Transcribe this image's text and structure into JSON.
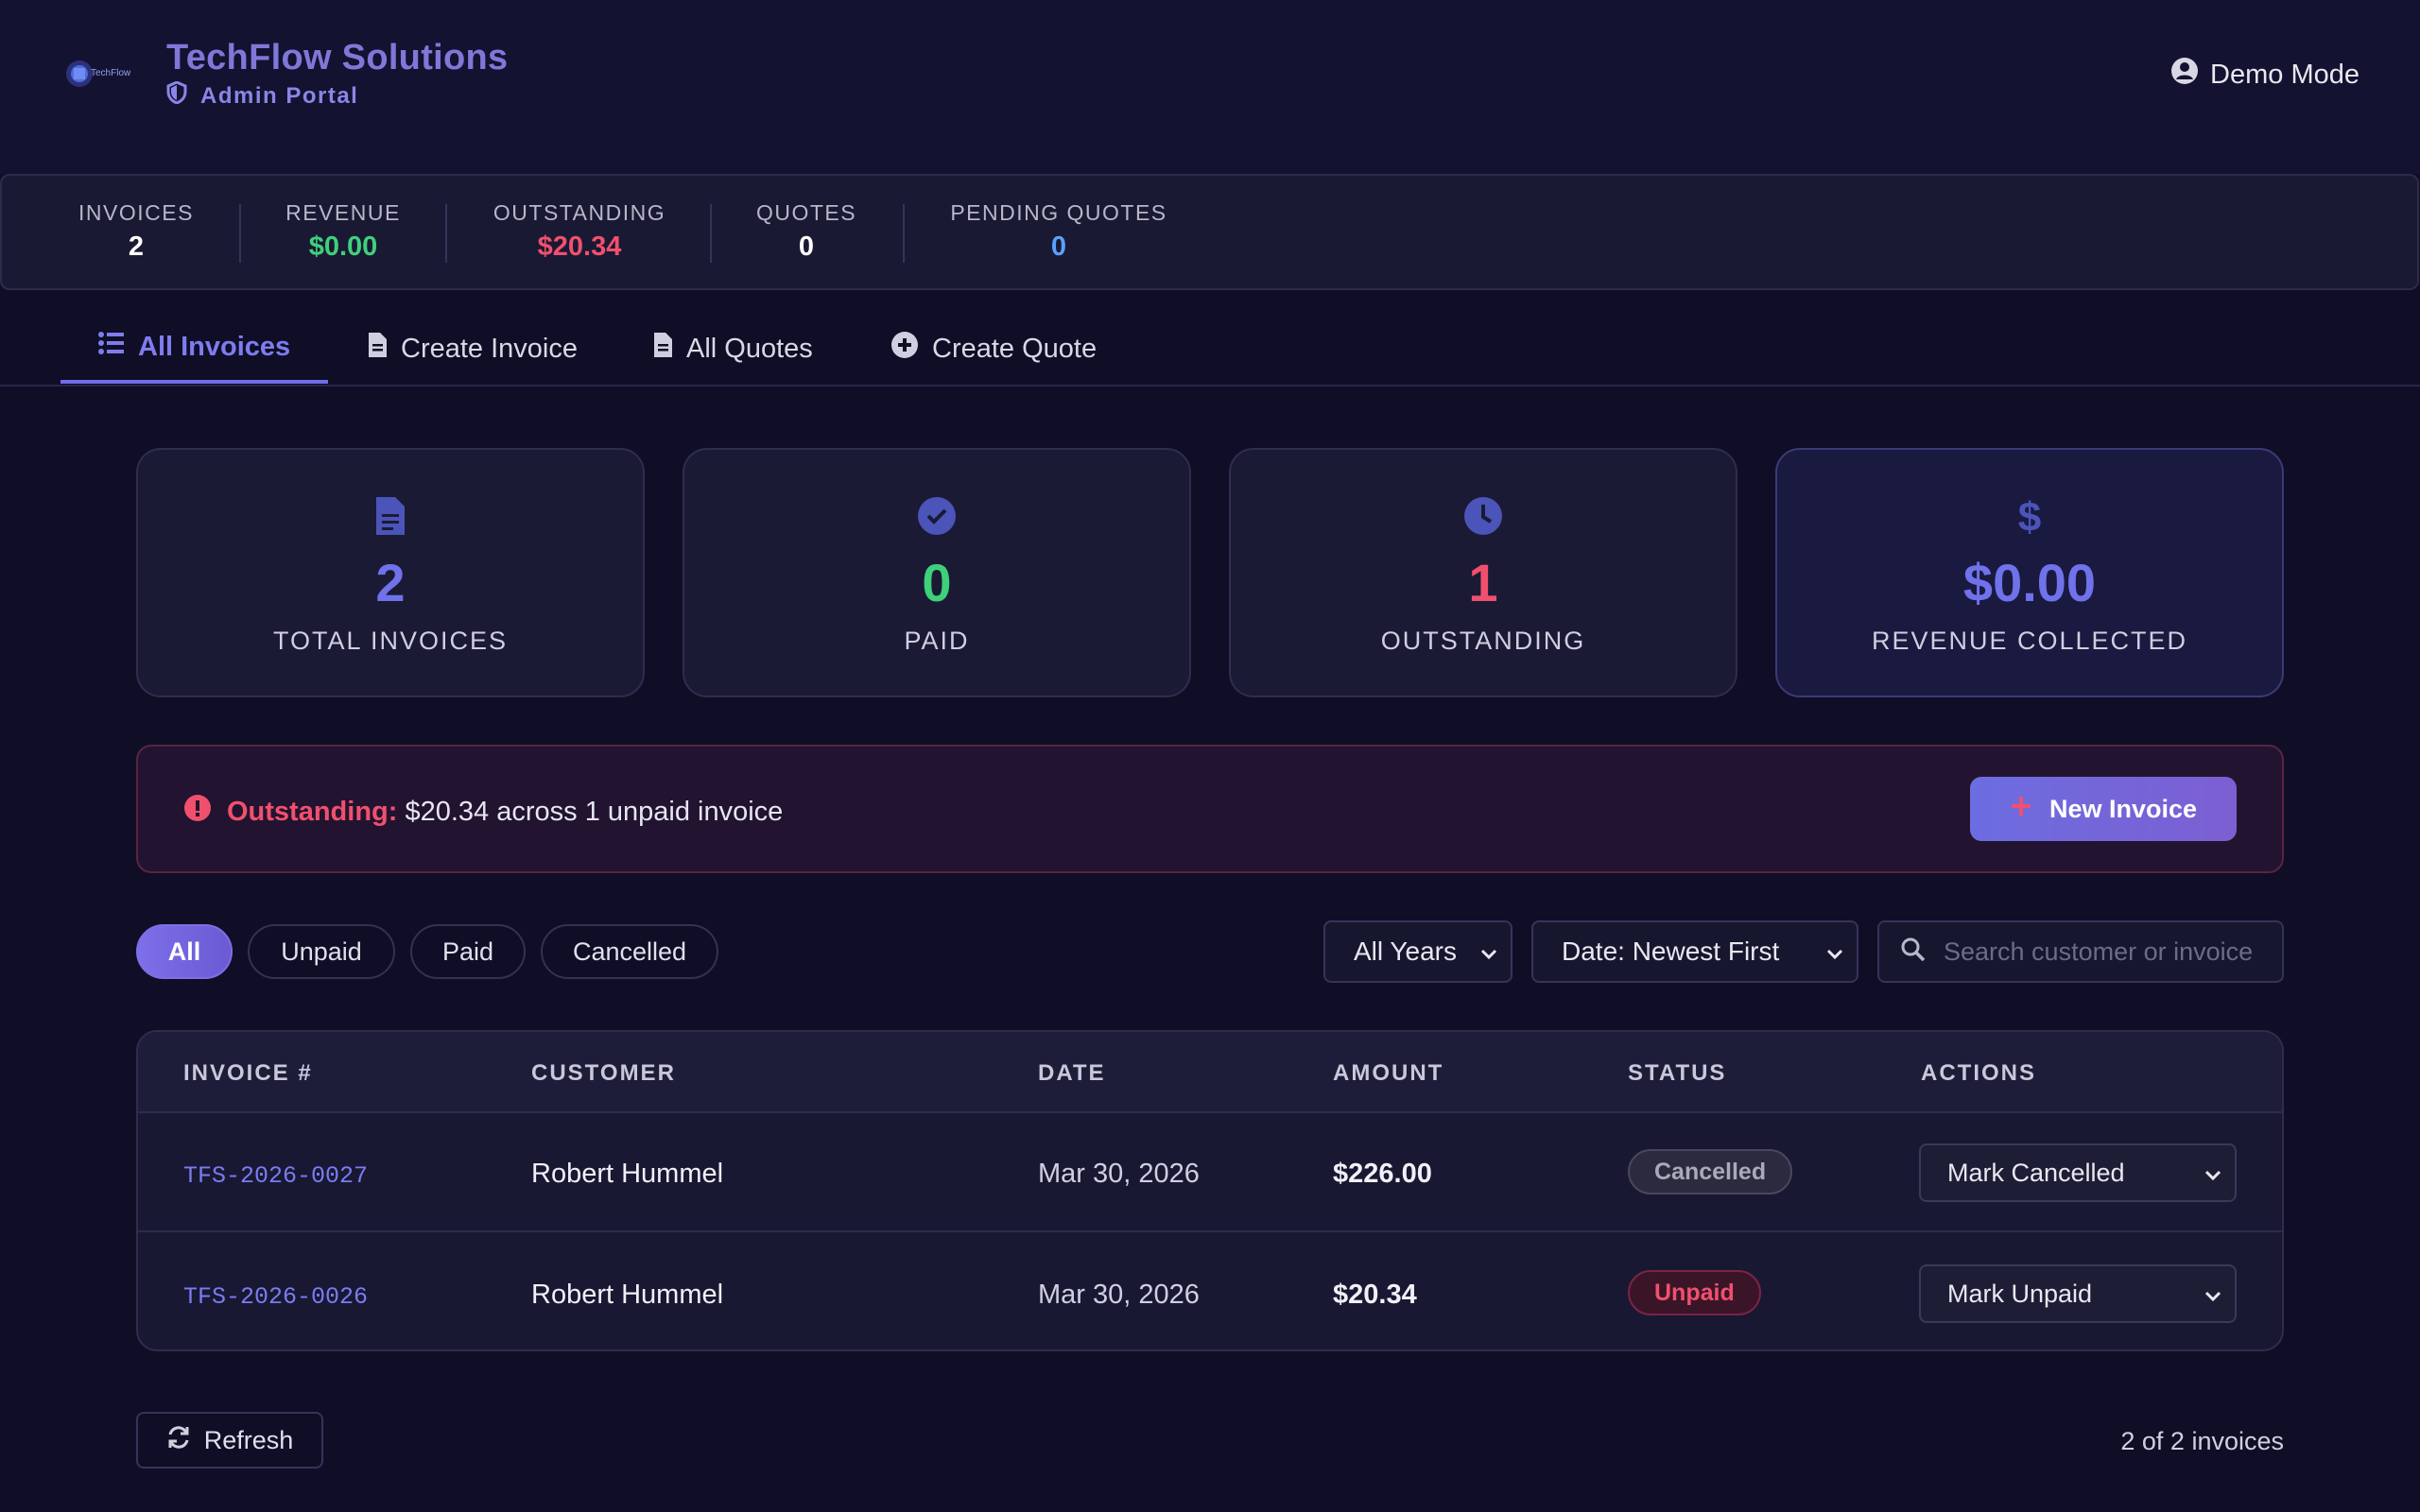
{
  "header": {
    "brand": "TechFlow Solutions",
    "subtitle": "Admin Portal",
    "logo_text": "TechFlow",
    "demo_label": "Demo Mode"
  },
  "stats_strip": [
    {
      "label": "INVOICES",
      "value": "2",
      "color": "#ffffff"
    },
    {
      "label": "REVENUE",
      "value": "$0.00",
      "color": "#3fd07a"
    },
    {
      "label": "OUTSTANDING",
      "value": "$20.34",
      "color": "#f0506e"
    },
    {
      "label": "QUOTES",
      "value": "0",
      "color": "#ffffff"
    },
    {
      "label": "PENDING QUOTES",
      "value": "0",
      "color": "#5aa0ff"
    }
  ],
  "tabs": [
    {
      "label": "All Invoices",
      "icon": "list-icon",
      "active": true
    },
    {
      "label": "Create Invoice",
      "icon": "document-icon"
    },
    {
      "label": "All Quotes",
      "icon": "file-icon"
    },
    {
      "label": "Create Quote",
      "icon": "plus-circle-icon"
    }
  ],
  "cards": [
    {
      "value": "2",
      "label": "TOTAL INVOICES",
      "icon": "invoice-icon",
      "color": "#6f72ea"
    },
    {
      "value": "0",
      "label": "PAID",
      "icon": "check-circle-icon",
      "color": "#3fd07a"
    },
    {
      "value": "1",
      "label": "OUTSTANDING",
      "icon": "clock-icon",
      "color": "#f0506e"
    },
    {
      "value": "$0.00",
      "label": "REVENUE COLLECTED",
      "icon": "dollar-icon",
      "color": "#6f72ea"
    }
  ],
  "alert": {
    "title": "Outstanding:",
    "text": "$20.34 across 1 unpaid invoice",
    "button": "New Invoice"
  },
  "filters": {
    "pills": [
      "All",
      "Unpaid",
      "Paid",
      "Cancelled"
    ],
    "active": "All",
    "year_select": "All Years",
    "sort_select": "Date: Newest First",
    "search_placeholder": "Search customer or invoice"
  },
  "table": {
    "columns": [
      "INVOICE #",
      "CUSTOMER",
      "DATE",
      "AMOUNT",
      "STATUS",
      "ACTIONS"
    ],
    "rows": [
      {
        "invoice": "TFS-2026-0027",
        "customer": "Robert Hummel",
        "date": "Mar 30, 2026",
        "amount": "$226.00",
        "status": "Cancelled",
        "action": "Mark Cancelled"
      },
      {
        "invoice": "TFS-2026-0026",
        "customer": "Robert Hummel",
        "date": "Mar 30, 2026",
        "amount": "$20.34",
        "status": "Unpaid",
        "action": "Mark Unpaid"
      }
    ]
  },
  "footer": {
    "refresh": "Refresh",
    "count": "2 of 2 invoices"
  }
}
